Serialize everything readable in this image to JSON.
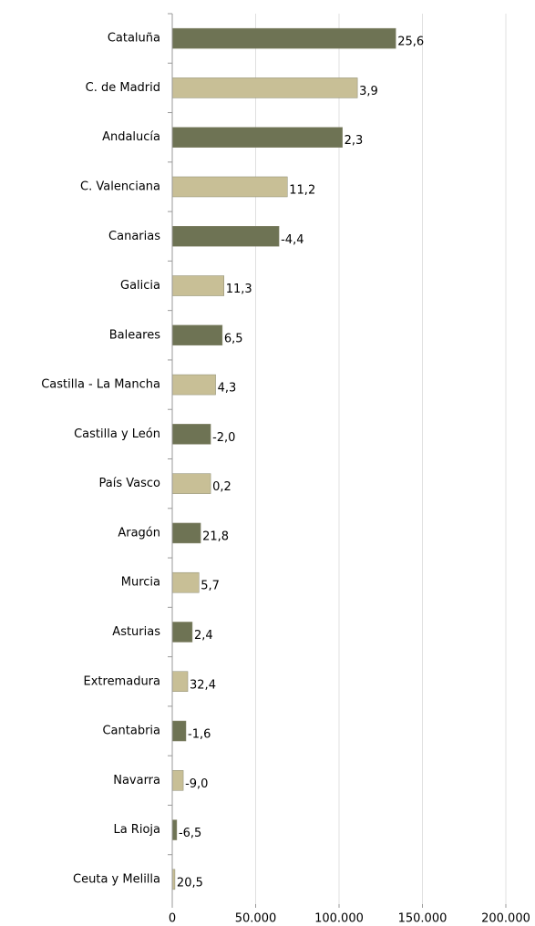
{
  "chart_data": {
    "type": "bar",
    "orientation": "horizontal",
    "categories": [
      "Cataluña",
      "C. de Madrid",
      "Andalucía",
      "C. Valenciana",
      "Canarias",
      "Galicia",
      "Baleares",
      "Castilla - La Mancha",
      "Castilla y León",
      "País Vasco",
      "Aragón",
      "Murcia",
      "Asturias",
      "Extremadura",
      "Cantabria",
      "Navarra",
      "La Rioja",
      "Ceuta y Melilla"
    ],
    "values": [
      134000,
      111000,
      102000,
      69000,
      64000,
      31000,
      30000,
      26000,
      23000,
      23000,
      17000,
      16000,
      12000,
      9300,
      8200,
      6600,
      2700,
      1600
    ],
    "colors": [
      "#6e7354",
      "#c8bf96",
      "#6e7354",
      "#c8bf96",
      "#6e7354",
      "#c8bf96",
      "#6e7354",
      "#c8bf96",
      "#6e7354",
      "#c8bf96",
      "#6e7354",
      "#c8bf96",
      "#6e7354",
      "#c8bf96",
      "#6e7354",
      "#c8bf96",
      "#6e7354",
      "#c8bf96"
    ],
    "changes": [
      25.6,
      3.9,
      2.3,
      11.2,
      -4.4,
      11.3,
      6.5,
      4.3,
      -2.0,
      0.2,
      21.8,
      5.7,
      2.4,
      32.4,
      -1.6,
      -9.0,
      -6.5,
      20.5
    ],
    "change_labels": [
      "25,6",
      "3,9",
      "2,3",
      "11,2",
      "-4,4",
      "11,3",
      "6,5",
      "4,3",
      "-2,0",
      "0,2",
      "21,8",
      "5,7",
      "2,4",
      "32,4",
      "-1,6",
      "-9,0",
      "-6,5",
      "20,5"
    ],
    "negative_label_color": "#ff0000",
    "xlim": [
      0,
      200000
    ],
    "xticks": [
      0,
      {
        "value": 50000,
        "label": "50.000"
      },
      {
        "value": 100000,
        "label": "100.000"
      },
      {
        "value": 150000,
        "label": "150.000"
      },
      {
        "value": 200000,
        "label": "200.000"
      }
    ],
    "grid": true
  }
}
